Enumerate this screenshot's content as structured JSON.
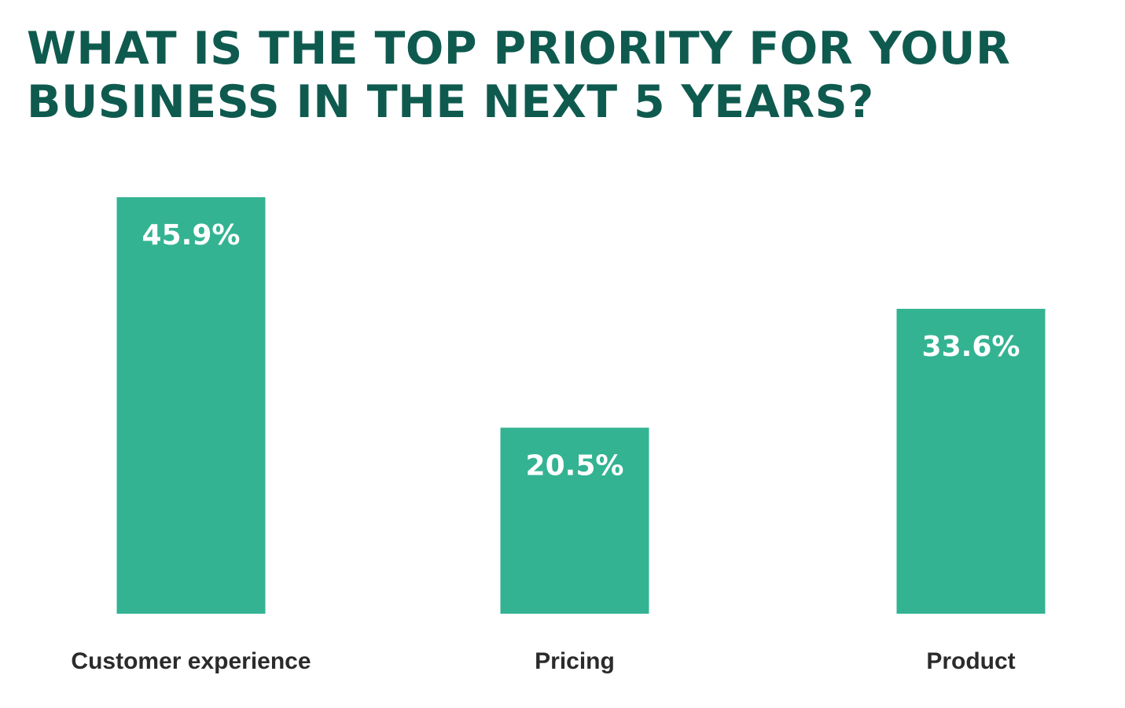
{
  "chart_data": {
    "type": "bar",
    "title_lines": [
      "WHAT IS THE TOP PRIORITY FOR YOUR",
      "BUSINESS IN THE NEXT 5 YEARS?"
    ],
    "categories": [
      "Customer experience",
      "Pricing",
      "Product"
    ],
    "values": [
      45.9,
      20.5,
      33.6
    ],
    "value_labels": [
      "45.9%",
      "20.5%",
      "33.6%"
    ],
    "unit": "%",
    "ylim": [
      0,
      45.9
    ],
    "grid": false,
    "legend": "none",
    "colors": {
      "bar": "#33b392",
      "title": "#0f5a4f",
      "value_label": "#ffffff",
      "category_label": "#2b2b2b"
    }
  }
}
